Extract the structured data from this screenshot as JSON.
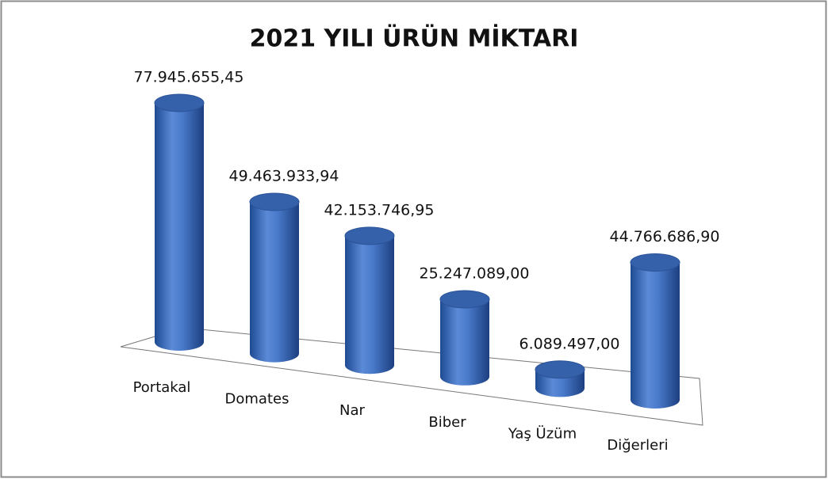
{
  "chart_data": {
    "type": "bar3d",
    "title": "2021 YILI ÜRÜN MİKTARI",
    "categories": [
      "Portakal",
      "Domates",
      "Nar",
      "Biber",
      "Yaş Üzüm",
      "Diğerleri"
    ],
    "values": [
      77945655.45,
      49463933.94,
      42153746.95,
      25247089.0,
      6089497.0,
      44766686.9
    ],
    "value_labels": [
      "77.945.655,45",
      "49.463.933,94",
      "42.153.746,95",
      "25.247.089,00",
      "6.089.497,00",
      "44.766.686,90"
    ],
    "color": "#3f6fc0"
  }
}
